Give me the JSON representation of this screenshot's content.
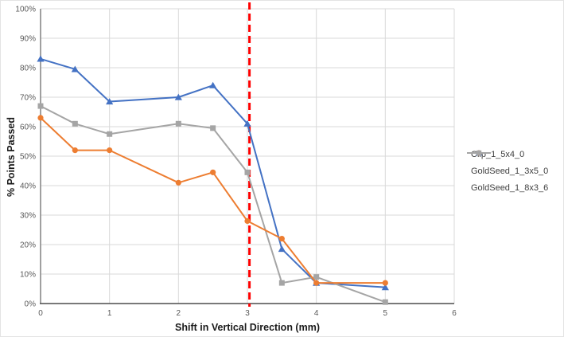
{
  "chart_data": {
    "type": "line",
    "title": "",
    "xlabel": "Shift in Vertical Direction (mm)",
    "ylabel": "% Points Passed",
    "xlim": [
      0,
      6
    ],
    "ylim": [
      0,
      100
    ],
    "x_tick_values": [
      0,
      1,
      2,
      3,
      4,
      5,
      6
    ],
    "x_tick_labels": [
      "0",
      "1",
      "2",
      "3",
      "4",
      "5",
      "6"
    ],
    "y_tick_values": [
      0,
      10,
      20,
      30,
      40,
      50,
      60,
      70,
      80,
      90,
      100
    ],
    "y_tick_labels": [
      "0%",
      "10%",
      "20%",
      "30%",
      "40%",
      "50%",
      "60%",
      "70%",
      "80%",
      "90%",
      "100%"
    ],
    "grid": true,
    "legend_position": "right",
    "series": [
      {
        "name": "Clip_1_5x4_0",
        "color": "#4472C4",
        "marker": "triangle",
        "points": [
          [
            0,
            83
          ],
          [
            0.5,
            79.5
          ],
          [
            1,
            68.5
          ],
          [
            2,
            70
          ],
          [
            2.5,
            74
          ],
          [
            3,
            61
          ],
          [
            3.5,
            18.5
          ],
          [
            4,
            7
          ],
          [
            5,
            5.5
          ]
        ]
      },
      {
        "name": "GoldSeed_1_3x5_0",
        "color": "#ED7D31",
        "marker": "circle",
        "points": [
          [
            0,
            63
          ],
          [
            0.5,
            52
          ],
          [
            1,
            52
          ],
          [
            2,
            41
          ],
          [
            2.5,
            44.5
          ],
          [
            3,
            28
          ],
          [
            3.5,
            22
          ],
          [
            4,
            7
          ],
          [
            5,
            7
          ]
        ]
      },
      {
        "name": "GoldSeed_1_8x3_6",
        "color": "#A5A5A5",
        "marker": "square",
        "points": [
          [
            0,
            67
          ],
          [
            0.5,
            61
          ],
          [
            1,
            57.5
          ],
          [
            2,
            61
          ],
          [
            2.5,
            59.5
          ],
          [
            3,
            44.5
          ],
          [
            3.5,
            7
          ],
          [
            4,
            9
          ],
          [
            5,
            0.5
          ]
        ]
      }
    ],
    "reference_line": {
      "x": 3.03,
      "color": "#FF0000",
      "style": "dashed"
    }
  },
  "colors": {
    "gridline": "#D9D9D9",
    "y_axis_line": "#898989",
    "x_axis_line": "#4d4d4d",
    "tick_text": "#595959",
    "axis_title_text": "#1a1a1a",
    "legend_text": "#404040",
    "background": "#ffffff"
  }
}
